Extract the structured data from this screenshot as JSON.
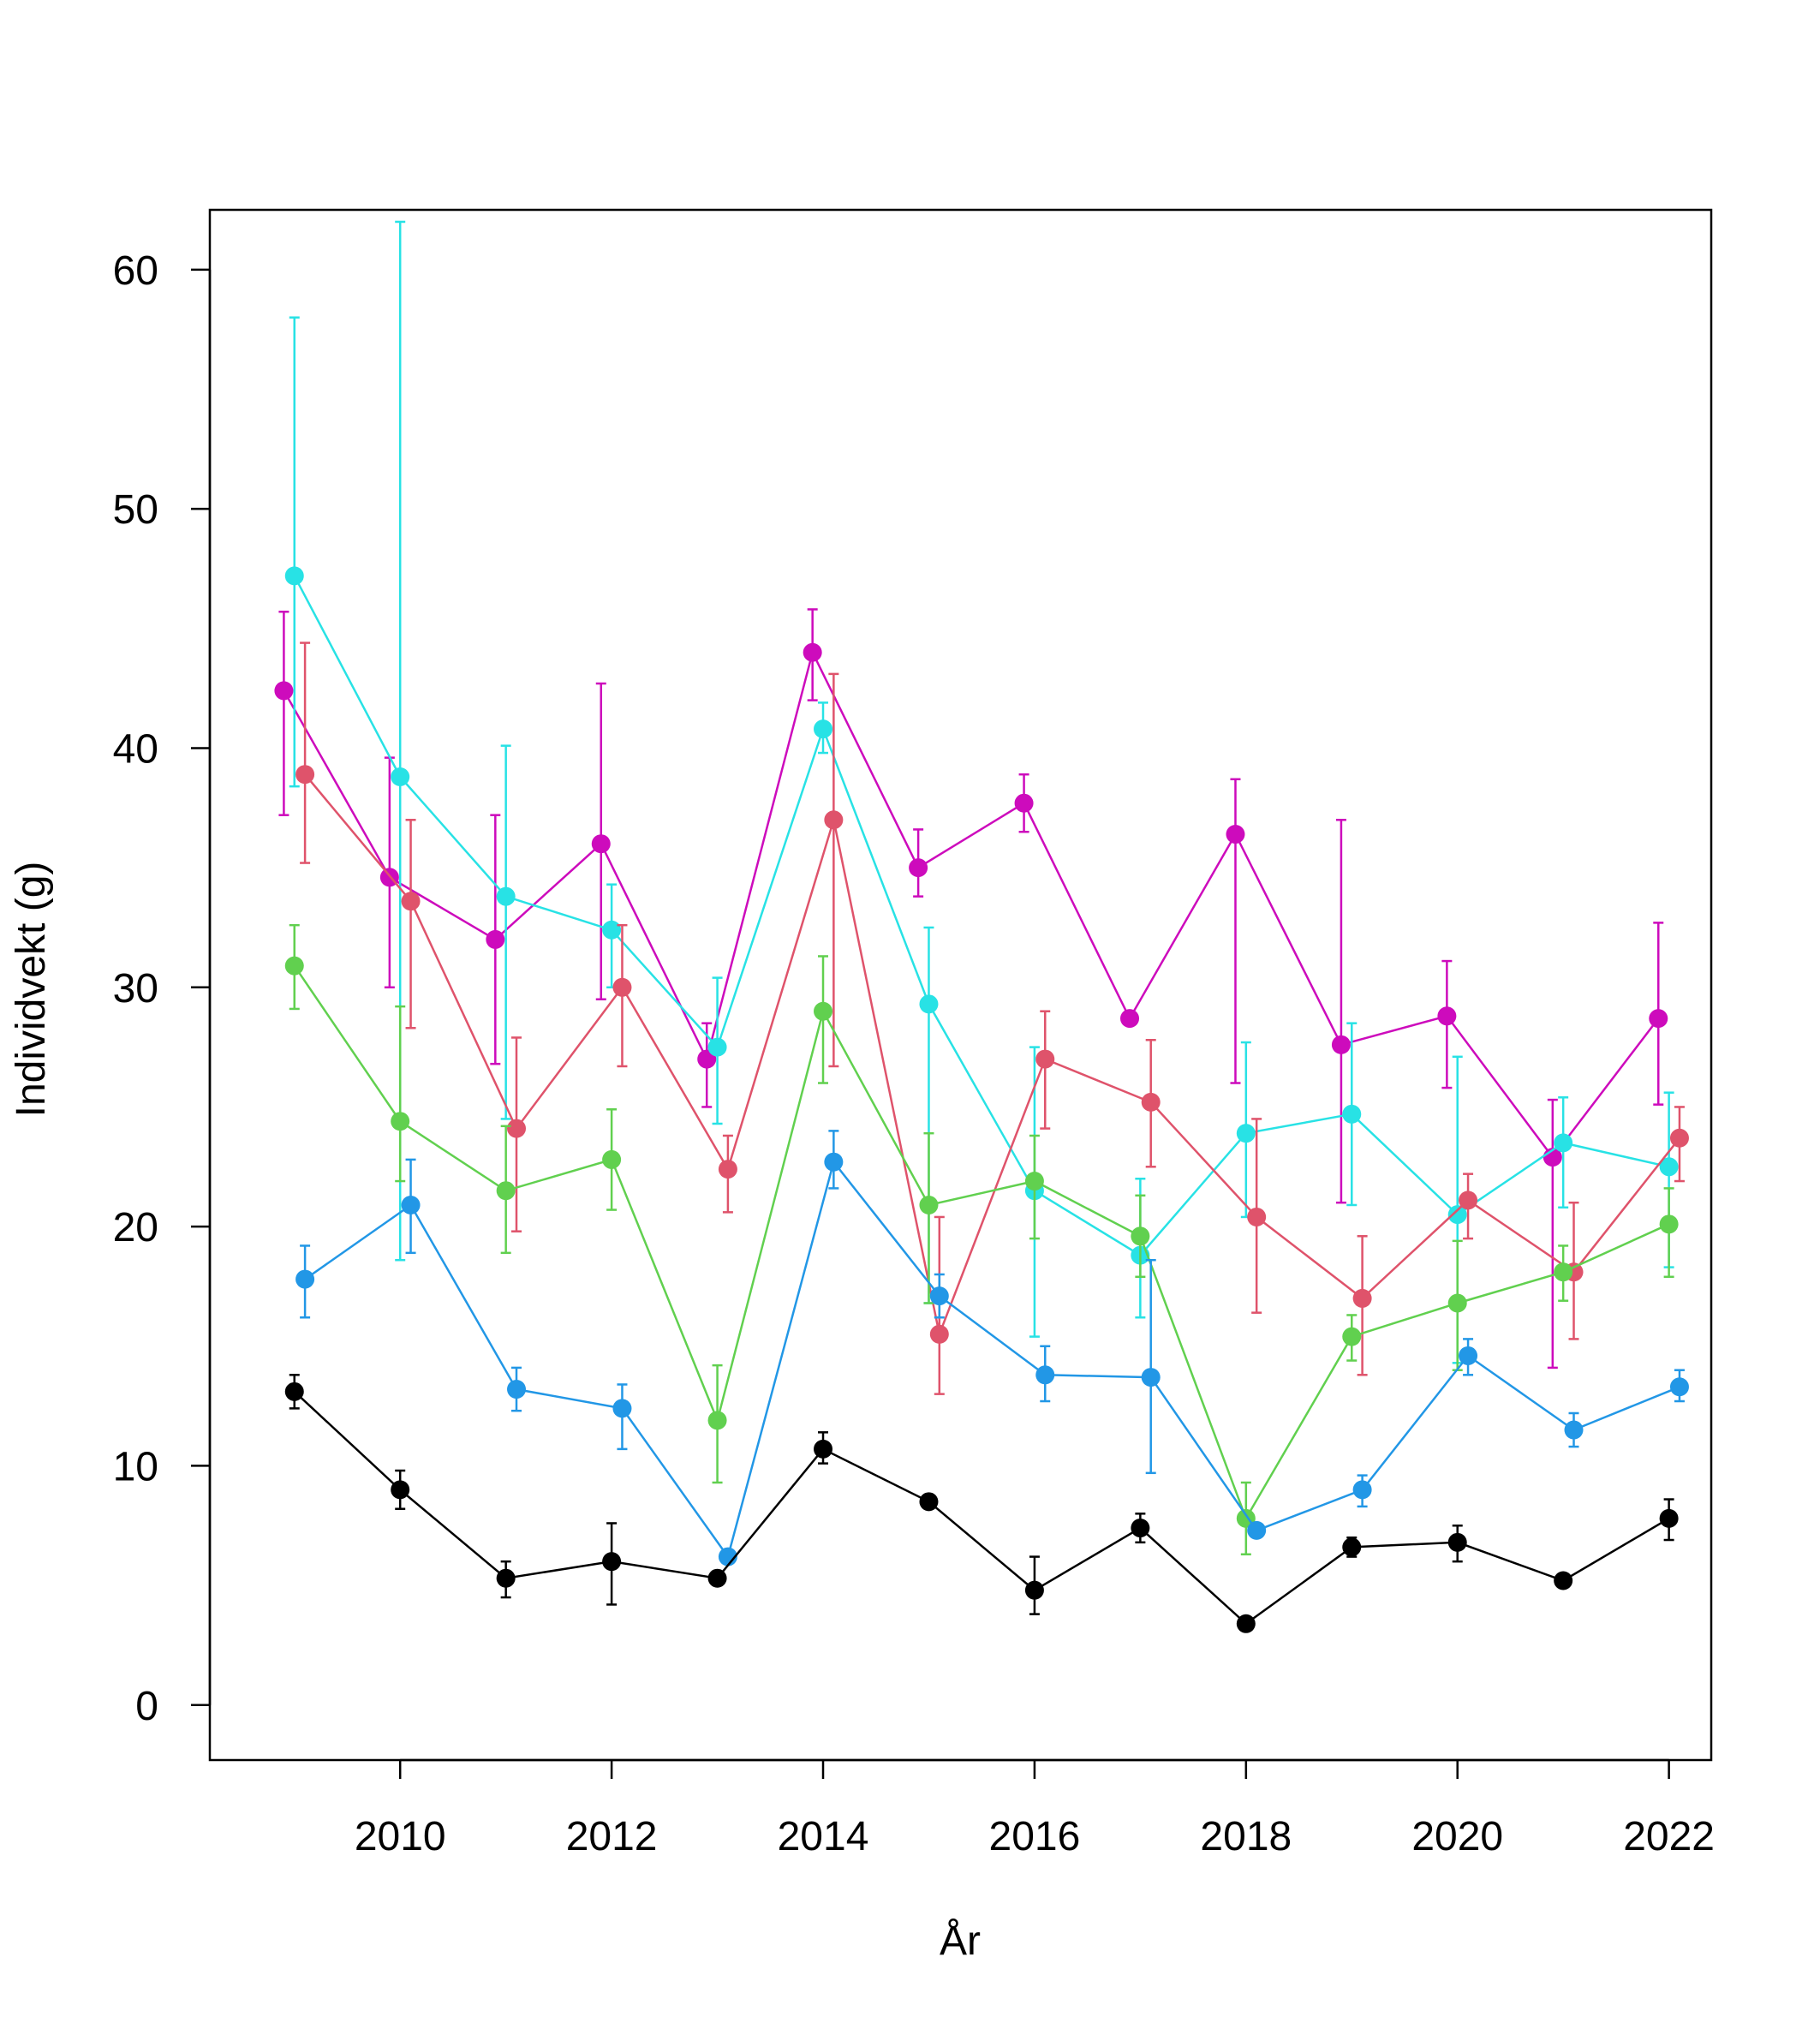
{
  "chart_data": {
    "type": "line",
    "title": "",
    "xlabel": "År",
    "ylabel": "Individvekt (g)",
    "xlim": [
      2008.2,
      2022.4
    ],
    "ylim": [
      -2.3,
      62.5
    ],
    "x_ticks": [
      2010,
      2012,
      2014,
      2016,
      2018,
      2020,
      2022
    ],
    "x_tick_labels": [
      "2010",
      "2012",
      "2014",
      "2016",
      "2018",
      "2020",
      "2022"
    ],
    "y_ticks": [
      0,
      10,
      20,
      30,
      40,
      50,
      60
    ],
    "y_tick_labels": [
      "0",
      "10",
      "20",
      "30",
      "40",
      "50",
      "60"
    ],
    "grid": false,
    "legend": "none",
    "series": [
      {
        "name": "magenta",
        "color": "#CD0BBC",
        "x": [
          2008.9,
          2009.9,
          2010.9,
          2011.9,
          2012.9,
          2013.9,
          2014.9,
          2015.9,
          2016.9,
          2017.9,
          2018.9,
          2019.9,
          2020.9,
          2021.9
        ],
        "y": [
          42.4,
          34.6,
          32.0,
          36.0,
          27.0,
          44.0,
          35.0,
          37.7,
          28.7,
          36.4,
          27.6,
          28.8,
          22.9,
          28.7
        ],
        "lower": [
          37.2,
          30.0,
          26.8,
          29.5,
          25.0,
          42.0,
          33.8,
          36.5,
          null,
          26.0,
          21.0,
          25.8,
          14.1,
          25.1
        ],
        "upper": [
          45.7,
          39.6,
          37.2,
          42.7,
          28.5,
          45.8,
          36.6,
          38.9,
          null,
          38.7,
          37.0,
          31.1,
          25.3,
          32.7
        ]
      },
      {
        "name": "cyan",
        "color": "#28E2E5",
        "x": [
          2009.0,
          2010.0,
          2011.0,
          2012.0,
          2013.0,
          2014.0,
          2015.0,
          2016.0,
          2017.0,
          2018.0,
          2019.0,
          2020.0,
          2021.0,
          2022.0
        ],
        "y": [
          47.2,
          38.8,
          33.8,
          32.4,
          27.5,
          40.8,
          29.3,
          21.5,
          18.8,
          23.9,
          24.7,
          20.5,
          23.5,
          22.5
        ],
        "lower": [
          38.4,
          18.6,
          24.5,
          30.0,
          24.3,
          39.8,
          16.8,
          15.4,
          16.2,
          20.4,
          20.9,
          14.3,
          20.8,
          18.3
        ],
        "upper": [
          58.0,
          62.0,
          40.1,
          34.3,
          30.4,
          41.9,
          32.5,
          27.5,
          22.0,
          27.7,
          28.5,
          27.1,
          25.4,
          25.6
        ]
      },
      {
        "name": "red",
        "color": "#DF536B",
        "x": [
          2009.1,
          2010.1,
          2011.1,
          2012.1,
          2013.1,
          2014.1,
          2015.1,
          2016.1,
          2017.1,
          2018.1,
          2019.1,
          2020.1,
          2021.1,
          2022.1
        ],
        "y": [
          38.9,
          33.6,
          24.1,
          30.0,
          22.4,
          37.0,
          15.5,
          27.0,
          25.2,
          20.4,
          17.0,
          21.1,
          18.1,
          23.7
        ],
        "lower": [
          35.2,
          28.3,
          19.8,
          26.7,
          20.6,
          26.7,
          13.0,
          24.1,
          22.5,
          16.4,
          13.8,
          19.5,
          15.3,
          21.9
        ],
        "upper": [
          44.4,
          37.0,
          27.9,
          32.6,
          23.8,
          43.1,
          20.4,
          29.0,
          27.8,
          24.5,
          19.6,
          22.2,
          21.0,
          25.0
        ]
      },
      {
        "name": "green",
        "color": "#61D04F",
        "x": [
          2009.0,
          2010.0,
          2011.0,
          2012.0,
          2013.0,
          2014.0,
          2015.0,
          2016.0,
          2017.0,
          2018.0,
          2019.0,
          2020.0,
          2021.0,
          2022.0
        ],
        "y": [
          30.9,
          24.4,
          21.5,
          22.8,
          11.9,
          29.0,
          20.9,
          21.9,
          19.6,
          7.8,
          15.4,
          16.8,
          18.1,
          20.1
        ],
        "lower": [
          29.1,
          21.9,
          18.9,
          20.7,
          9.3,
          26.0,
          16.8,
          19.5,
          17.9,
          6.3,
          14.4,
          14.0,
          16.9,
          17.9
        ],
        "upper": [
          32.6,
          29.2,
          24.2,
          24.9,
          14.2,
          31.3,
          23.9,
          23.8,
          21.3,
          9.3,
          16.3,
          19.4,
          19.2,
          21.6
        ]
      },
      {
        "name": "blue",
        "color": "#2297E6",
        "x": [
          2009.1,
          2010.1,
          2011.1,
          2012.1,
          2013.1,
          2014.1,
          2015.1,
          2016.1,
          2017.1,
          2018.1,
          2019.1,
          2020.1,
          2021.1,
          2022.1
        ],
        "y": [
          17.8,
          20.9,
          13.2,
          12.4,
          6.2,
          22.7,
          17.1,
          13.8,
          13.7,
          7.3,
          9.0,
          14.6,
          11.5,
          13.3
        ],
        "lower": [
          16.2,
          18.9,
          12.3,
          10.7,
          null,
          21.6,
          16.2,
          12.7,
          9.7,
          null,
          8.3,
          13.8,
          10.8,
          12.7
        ],
        "upper": [
          19.2,
          22.8,
          14.1,
          13.4,
          null,
          24.0,
          18.0,
          15.0,
          18.6,
          null,
          9.6,
          15.3,
          12.2,
          14.0
        ]
      },
      {
        "name": "black",
        "color": "#000000",
        "x": [
          2009.0,
          2010.0,
          2011.0,
          2012.0,
          2013.0,
          2014.0,
          2015.0,
          2016.0,
          2017.0,
          2018.0,
          2019.0,
          2020.0,
          2021.0,
          2022.0
        ],
        "y": [
          13.1,
          9.0,
          5.3,
          6.0,
          5.3,
          10.7,
          8.5,
          4.8,
          7.4,
          3.4,
          6.6,
          6.8,
          5.2,
          7.8
        ],
        "lower": [
          12.4,
          8.2,
          4.5,
          4.2,
          null,
          10.1,
          null,
          3.8,
          6.8,
          null,
          6.2,
          6.0,
          null,
          6.9
        ],
        "upper": [
          13.8,
          9.8,
          6.0,
          7.6,
          null,
          11.4,
          null,
          6.2,
          8.0,
          null,
          7.0,
          7.5,
          null,
          8.6
        ]
      }
    ]
  }
}
